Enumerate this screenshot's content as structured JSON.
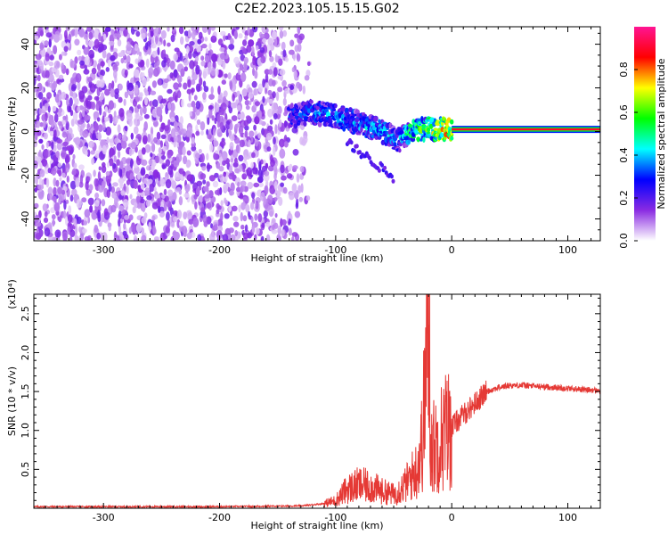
{
  "title": "C2E2.2023.105.15.15.G02",
  "chart_data": [
    {
      "type": "heatmap",
      "xlabel": "Height of straight line (km)",
      "ylabel": "Frequency (Hz)",
      "xlim": [
        -360,
        128
      ],
      "ylim": [
        -50,
        48
      ],
      "xticks": [
        -300,
        -200,
        -100,
        0,
        100
      ],
      "yticks": [
        -40,
        -20,
        0,
        20,
        40
      ],
      "colorbar": {
        "label": "Normalized spectral amplitude",
        "range": [
          0,
          1
        ],
        "ticks": [
          "0.0",
          "0.2",
          "0.4",
          "0.6",
          "0.8"
        ],
        "colors": [
          "#ffffff",
          "#8a2be2",
          "#0000ff",
          "#00ffff",
          "#00ff00",
          "#ffff00",
          "#ff0000",
          "#ff1493"
        ]
      },
      "features": {
        "noise_region": {
          "x": [
            -360,
            -120
          ],
          "y": [
            -50,
            48
          ],
          "amplitude": 0.1
        },
        "signal_path": [
          {
            "x": -140,
            "y": 7,
            "amplitude": 0.35
          },
          {
            "x": -120,
            "y": 9,
            "amplitude": 0.4
          },
          {
            "x": -100,
            "y": 7,
            "amplitude": 0.4
          },
          {
            "x": -80,
            "y": 4,
            "amplitude": 0.45
          },
          {
            "x": -60,
            "y": 0,
            "amplitude": 0.45
          },
          {
            "x": -45,
            "y": -4,
            "amplitude": 0.4
          },
          {
            "x": -35,
            "y": 1,
            "amplitude": 0.6
          },
          {
            "x": -20,
            "y": 1,
            "amplitude": 0.7
          },
          {
            "x": 0,
            "y": 1,
            "amplitude": 0.9
          }
        ],
        "steady_line": {
          "x": [
            0,
            128
          ],
          "y": 1,
          "amplitude": 0.9
        }
      }
    },
    {
      "type": "line",
      "xlabel": "Height of straight line (km)",
      "ylabel": "SNR (10 * v/v)",
      "multiplier": "(x10⁴)",
      "xlim": [
        -360,
        128
      ],
      "ylim": [
        0,
        2.75
      ],
      "xticks": [
        -300,
        -200,
        -100,
        0,
        100
      ],
      "yticks": [
        "0.5",
        "1.0",
        "1.5",
        "2.0",
        "2.5"
      ],
      "color": "#e53935",
      "x": [
        -360,
        -300,
        -200,
        -130,
        -110,
        -100,
        -90,
        -80,
        -70,
        -60,
        -50,
        -40,
        -30,
        -25,
        -20,
        -19,
        -18,
        -15,
        -10,
        -5,
        0,
        10,
        20,
        30,
        40,
        50,
        60,
        80,
        100,
        128
      ],
      "y": [
        0.02,
        0.02,
        0.02,
        0.03,
        0.06,
        0.1,
        0.25,
        0.3,
        0.28,
        0.22,
        0.18,
        0.3,
        0.5,
        0.9,
        2.6,
        1.8,
        0.8,
        0.8,
        0.9,
        1.0,
        1.05,
        1.2,
        1.35,
        1.5,
        1.55,
        1.58,
        1.58,
        1.56,
        1.54,
        1.51
      ]
    }
  ]
}
